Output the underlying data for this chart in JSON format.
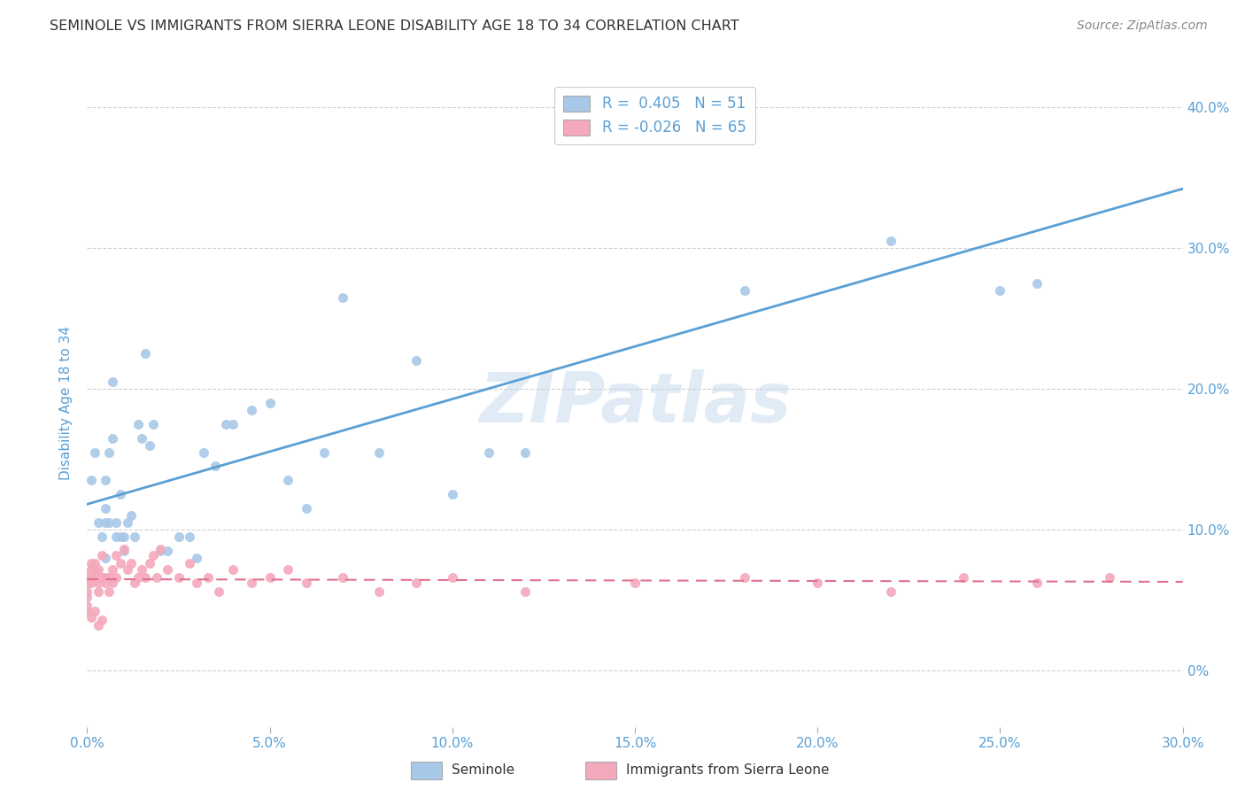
{
  "title": "SEMINOLE VS IMMIGRANTS FROM SIERRA LEONE DISABILITY AGE 18 TO 34 CORRELATION CHART",
  "source": "Source: ZipAtlas.com",
  "ylabel": "Disability Age 18 to 34",
  "xmin": 0.0,
  "xmax": 0.3,
  "ymin": -0.04,
  "ymax": 0.42,
  "seminole_color": "#a8c8e8",
  "sierra_leone_color": "#f4a8bc",
  "seminole_line_color": "#5a9fd4",
  "sierra_leone_line_color": "#e07090",
  "legend_label_1": "R =  0.405   N = 51",
  "legend_label_2": "R = -0.026   N = 65",
  "watermark": "ZIPatlas",
  "background_color": "#ffffff",
  "grid_color": "#cccccc",
  "title_color": "#333333",
  "axis_label_color": "#5a9fd4",
  "right_axis_color": "#5a9fd4",
  "seminole_x": [
    0.001,
    0.002,
    0.003,
    0.004,
    0.005,
    0.005,
    0.005,
    0.006,
    0.006,
    0.007,
    0.007,
    0.008,
    0.008,
    0.009,
    0.009,
    0.01,
    0.01,
    0.011,
    0.012,
    0.013,
    0.014,
    0.015,
    0.016,
    0.017,
    0.018,
    0.02,
    0.022,
    0.025,
    0.028,
    0.03,
    0.032,
    0.035,
    0.038,
    0.04,
    0.045,
    0.05,
    0.055,
    0.06,
    0.065,
    0.07,
    0.08,
    0.09,
    0.1,
    0.11,
    0.12,
    0.15,
    0.18,
    0.22,
    0.25,
    0.26,
    0.005
  ],
  "seminole_y": [
    0.135,
    0.155,
    0.105,
    0.095,
    0.115,
    0.135,
    0.105,
    0.105,
    0.155,
    0.165,
    0.205,
    0.095,
    0.105,
    0.095,
    0.125,
    0.095,
    0.085,
    0.105,
    0.11,
    0.095,
    0.175,
    0.165,
    0.225,
    0.16,
    0.175,
    0.085,
    0.085,
    0.095,
    0.095,
    0.08,
    0.155,
    0.145,
    0.175,
    0.175,
    0.185,
    0.19,
    0.135,
    0.115,
    0.155,
    0.265,
    0.155,
    0.22,
    0.125,
    0.155,
    0.155,
    0.385,
    0.27,
    0.305,
    0.27,
    0.275,
    0.08
  ],
  "sierra_leone_x": [
    0.0,
    0.0,
    0.0,
    0.0,
    0.0,
    0.001,
    0.001,
    0.001,
    0.001,
    0.002,
    0.002,
    0.002,
    0.003,
    0.003,
    0.003,
    0.004,
    0.004,
    0.005,
    0.005,
    0.006,
    0.006,
    0.007,
    0.007,
    0.008,
    0.008,
    0.009,
    0.01,
    0.011,
    0.012,
    0.013,
    0.014,
    0.015,
    0.016,
    0.017,
    0.018,
    0.019,
    0.02,
    0.022,
    0.025,
    0.028,
    0.03,
    0.033,
    0.036,
    0.04,
    0.045,
    0.05,
    0.055,
    0.06,
    0.07,
    0.08,
    0.09,
    0.1,
    0.12,
    0.15,
    0.18,
    0.2,
    0.22,
    0.24,
    0.26,
    0.28,
    0.0,
    0.001,
    0.002,
    0.003,
    0.004
  ],
  "sierra_leone_y": [
    0.068,
    0.062,
    0.056,
    0.052,
    0.046,
    0.072,
    0.066,
    0.062,
    0.076,
    0.072,
    0.066,
    0.076,
    0.056,
    0.062,
    0.072,
    0.066,
    0.082,
    0.066,
    0.062,
    0.056,
    0.066,
    0.062,
    0.072,
    0.066,
    0.082,
    0.076,
    0.086,
    0.072,
    0.076,
    0.062,
    0.066,
    0.072,
    0.066,
    0.076,
    0.082,
    0.066,
    0.086,
    0.072,
    0.066,
    0.076,
    0.062,
    0.066,
    0.056,
    0.072,
    0.062,
    0.066,
    0.072,
    0.062,
    0.066,
    0.056,
    0.062,
    0.066,
    0.056,
    0.062,
    0.066,
    0.062,
    0.056,
    0.066,
    0.062,
    0.066,
    0.042,
    0.038,
    0.042,
    0.032,
    0.036
  ]
}
